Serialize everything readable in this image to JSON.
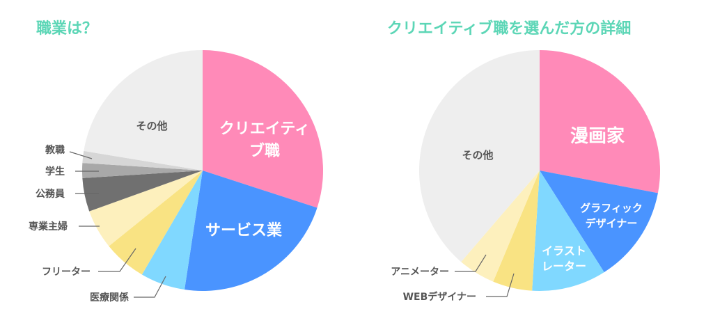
{
  "title_color": "#5cd6b6",
  "chart_data": [
    {
      "type": "pie",
      "title": "職業は？",
      "start": "top",
      "direction": "clockwise",
      "slices": [
        {
          "label": "クリエイティブ職",
          "label_lines": [
            "クリエイティ",
            "ブ職"
          ],
          "value": 30,
          "color": "#ff8ab8",
          "label_style": "inside"
        },
        {
          "label": "サービス業",
          "label_lines": [
            "サービス業"
          ],
          "value": 22.4,
          "color": "#4a94ff",
          "label_style": "inside"
        },
        {
          "label": "医療関係",
          "value": 6,
          "color": "#80d8ff",
          "label_style": "outside"
        },
        {
          "label": "フリーター",
          "value": 5.8,
          "color": "#f9e383",
          "label_style": "outside"
        },
        {
          "label": "専業主婦",
          "value": 5.3,
          "color": "#fdf0bd",
          "label_style": "outside"
        },
        {
          "label": "公務員",
          "value": 4.5,
          "color": "#707070",
          "label_style": "outside"
        },
        {
          "label": "学生",
          "value": 2,
          "color": "#a8a8a8",
          "label_style": "outside"
        },
        {
          "label": "教職",
          "value": 1.6,
          "color": "#d6d6d6",
          "label_style": "outside"
        },
        {
          "label": "その他",
          "label_lines": [
            "その他"
          ],
          "value": 22.4,
          "color": "#eeeeee",
          "label_style": "inside-dark"
        }
      ]
    },
    {
      "type": "pie",
      "title": "クリエイティブ職を選んだ方の詳細",
      "start": "top",
      "direction": "clockwise",
      "slices": [
        {
          "label": "漫画家",
          "label_lines": [
            "漫画家"
          ],
          "value": 28,
          "color": "#ff8ab8",
          "label_style": "inside"
        },
        {
          "label": "グラフィックデザイナー",
          "label_lines": [
            "グラフィック",
            "デザイナー"
          ],
          "value": 13,
          "color": "#4a94ff",
          "label_style": "inside"
        },
        {
          "label": "イラストレーター",
          "label_lines": [
            "イラスト",
            "レーター"
          ],
          "value": 10,
          "color": "#80d8ff",
          "label_style": "inside"
        },
        {
          "label": "WEBデザイナー",
          "value": 5.3,
          "color": "#f9e383",
          "label_style": "outside"
        },
        {
          "label": "アニメーター",
          "value": 5,
          "color": "#fdf0bd",
          "label_style": "outside"
        },
        {
          "label": "その他",
          "label_lines": [
            "その他"
          ],
          "value": 38.7,
          "color": "#eeeeee",
          "label_style": "inside-dark"
        }
      ]
    }
  ]
}
